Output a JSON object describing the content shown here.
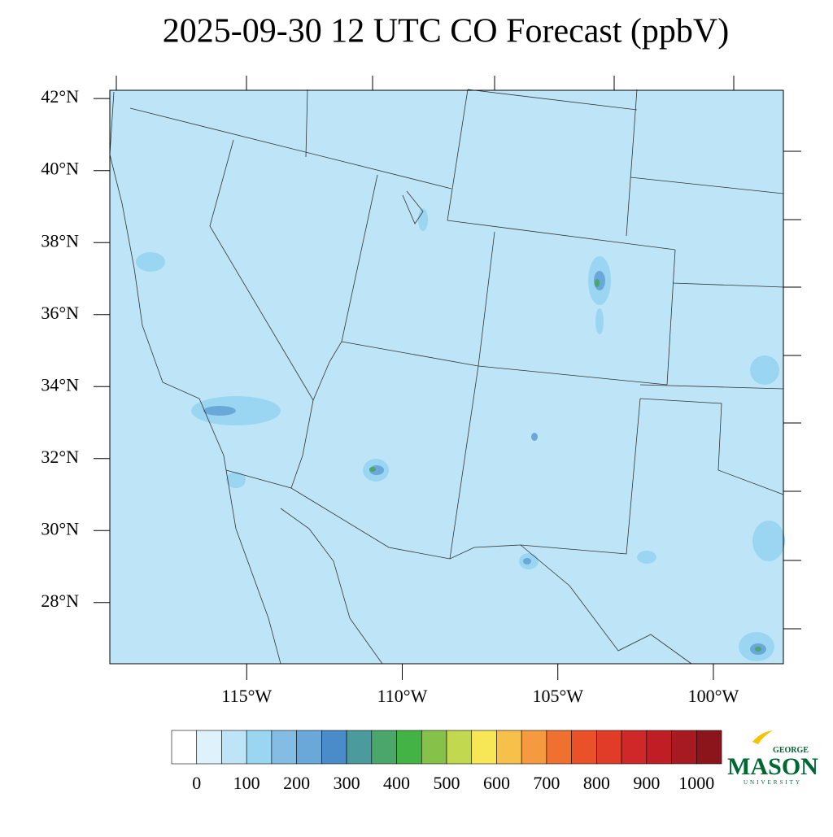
{
  "chart_data": {
    "type": "map",
    "title": "2025-09-30 12 UTC CO Forecast (ppbV)",
    "xlim": [
      -119.4,
      -97.75
    ],
    "ylim": [
      26.3,
      42.23
    ],
    "yticks": [
      {
        "value": 42,
        "label": "42°N"
      },
      {
        "value": 40,
        "label": "40°N"
      },
      {
        "value": 38,
        "label": "38°N"
      },
      {
        "value": 36,
        "label": "36°N"
      },
      {
        "value": 34,
        "label": "34°N"
      },
      {
        "value": 32,
        "label": "32°N"
      },
      {
        "value": 30,
        "label": "30°N"
      },
      {
        "value": 28,
        "label": "28°N"
      }
    ],
    "xticks": [
      {
        "value": -115,
        "label": "115°W"
      },
      {
        "value": -110,
        "label": "110°W"
      },
      {
        "value": -105,
        "label": "105°W"
      },
      {
        "value": -100,
        "label": "100°W"
      }
    ],
    "colorbar": {
      "colors": [
        "#ffffff",
        "#dff1fb",
        "#bde5f7",
        "#9ad6f2",
        "#84bde3",
        "#6aa8d9",
        "#4a8cc9",
        "#4a9a9e",
        "#4aa66a",
        "#44b346",
        "#86c24a",
        "#c2d84e",
        "#f7e756",
        "#f6c04a",
        "#f59a3e",
        "#f07030",
        "#ea5128",
        "#e03c28",
        "#d02828",
        "#c01e25",
        "#a81a22",
        "#8c151c"
      ],
      "labels": [
        0,
        100,
        200,
        300,
        400,
        500,
        600,
        700,
        800,
        900,
        1000
      ]
    },
    "logo": {
      "top": "GEORGE",
      "main": "MASON",
      "bottom": "UNIVERSITY"
    }
  }
}
